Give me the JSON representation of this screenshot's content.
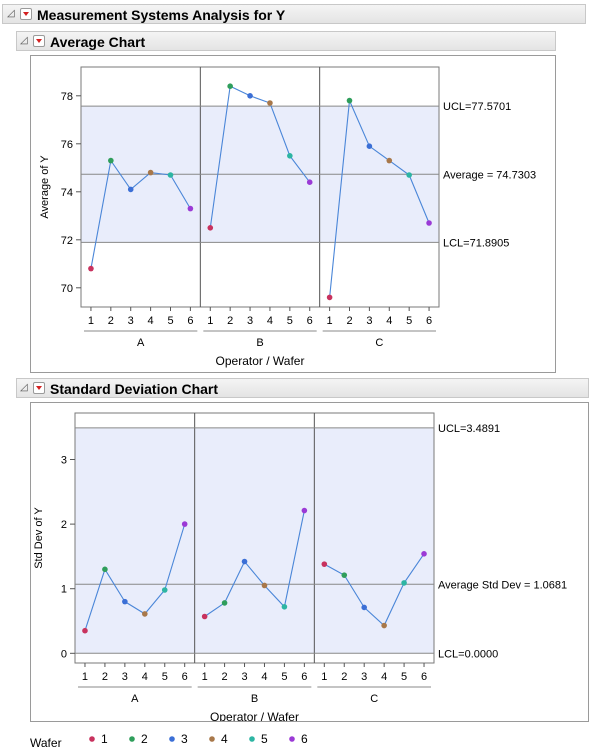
{
  "report": {
    "title": "Measurement Systems Analysis for Y"
  },
  "colors": {
    "1": "#c8325e",
    "2": "#2f9e5b",
    "3": "#3b6fd6",
    "4": "#a8784a",
    "5": "#2db5a3",
    "6": "#9b3ad6"
  },
  "legend": {
    "title": "Wafer",
    "items": [
      "1",
      "2",
      "3",
      "4",
      "5",
      "6"
    ]
  },
  "chart_data": [
    {
      "type": "line",
      "title": "Average Chart",
      "ylabel": "Average of Y",
      "xlabel": "Operator  /  Wafer",
      "groups": [
        "A",
        "B",
        "C"
      ],
      "categories": [
        "1",
        "2",
        "3",
        "4",
        "5",
        "6"
      ],
      "ylim": [
        69.2,
        79.2
      ],
      "yticks": [
        70,
        72,
        74,
        76,
        78
      ],
      "series": [
        {
          "values": [
            70.8,
            75.3,
            74.1,
            74.8,
            74.7,
            73.3
          ]
        },
        {
          "values": [
            72.5,
            78.4,
            78.0,
            77.7,
            75.5,
            74.4
          ]
        },
        {
          "values": [
            69.6,
            77.8,
            75.9,
            75.3,
            74.7,
            72.7
          ]
        }
      ],
      "limits": [
        {
          "label": "UCL=77.5701",
          "value": 77.5701
        },
        {
          "label": "Average = 74.7303",
          "value": 74.7303
        },
        {
          "label": "LCL=71.8905",
          "value": 71.8905
        }
      ],
      "shade": [
        71.8905,
        77.5701
      ]
    },
    {
      "type": "line",
      "title": "Standard Deviation Chart",
      "ylabel": "Std Dev of Y",
      "xlabel": "Operator  /  Wafer",
      "groups": [
        "A",
        "B",
        "C"
      ],
      "categories": [
        "1",
        "2",
        "3",
        "4",
        "5",
        "6"
      ],
      "ylim": [
        -0.15,
        3.72
      ],
      "yticks": [
        0,
        1,
        2,
        3
      ],
      "series": [
        {
          "values": [
            0.35,
            1.3,
            0.8,
            0.61,
            0.98,
            2.0
          ]
        },
        {
          "values": [
            0.57,
            0.78,
            1.42,
            1.05,
            0.72,
            2.21
          ]
        },
        {
          "values": [
            1.38,
            1.21,
            0.71,
            0.43,
            1.09,
            1.54
          ]
        }
      ],
      "limits": [
        {
          "label": "UCL=3.4891",
          "value": 3.4891
        },
        {
          "label": "Average Std Dev = 1.0681",
          "value": 1.0681
        },
        {
          "label": "LCL=0.0000",
          "value": 0.0
        }
      ],
      "shade": [
        0.0,
        3.4891
      ]
    }
  ]
}
